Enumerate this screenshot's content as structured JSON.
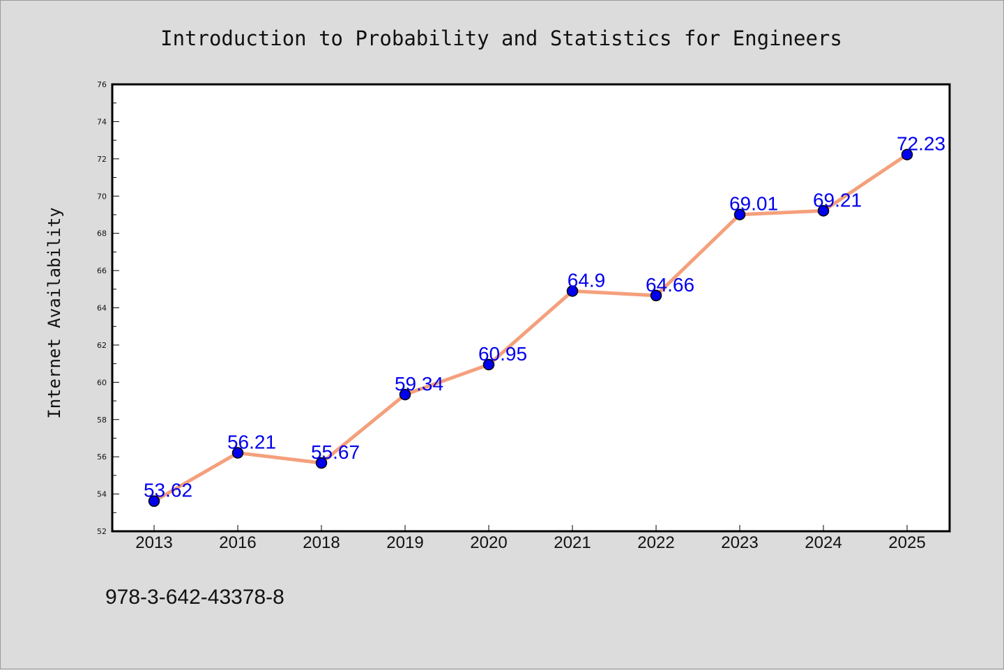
{
  "chart_data": {
    "type": "line",
    "title": "Introduction to Probability and Statistics for Engineers",
    "xlabel": "",
    "ylabel": "Internet Availability",
    "categories": [
      "2013",
      "2016",
      "2018",
      "2019",
      "2020",
      "2021",
      "2022",
      "2023",
      "2024",
      "2025"
    ],
    "series": [
      {
        "values": [
          53.62,
          56.21,
          55.67,
          59.34,
          60.95,
          64.9,
          64.66,
          69.01,
          69.21,
          72.23
        ],
        "data_labels": [
          "53.62",
          "56.21",
          "55.67",
          "59.34",
          "60.95",
          "64.9",
          "64.66",
          "69.01",
          "69.21",
          "72.23"
        ],
        "line_color": "#f4a07c",
        "marker_color": "#0000ee"
      }
    ],
    "ylim": [
      52,
      76
    ],
    "y_major_ticks": [
      52,
      54,
      56,
      58,
      60,
      62,
      64,
      66,
      68,
      70,
      72,
      74,
      76
    ],
    "y_tick_labels": [
      "52",
      "54",
      "56",
      "58",
      "60",
      "62",
      "64",
      "66",
      "68",
      "70",
      "72",
      "74",
      "76"
    ],
    "grid": false,
    "legend": "none",
    "label_color": "#0000ee",
    "footnote": "978-3-642-43378-8"
  }
}
